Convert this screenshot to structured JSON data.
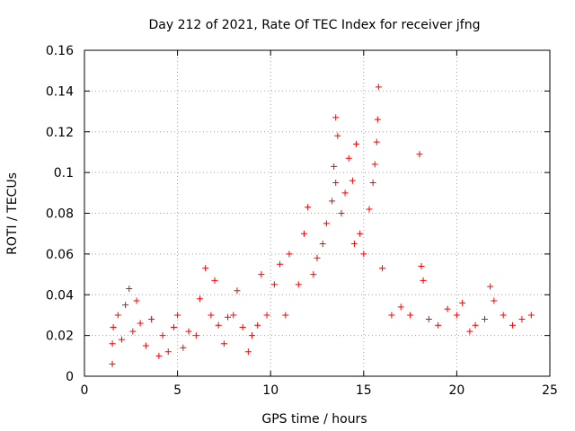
{
  "chart_data": {
    "type": "scatter",
    "title": "Day 212 of 2021, Rate Of TEC Index for receiver jfng",
    "xlabel": "GPS time / hours",
    "ylabel": "ROTI / TECUs",
    "xlim": [
      0,
      25
    ],
    "ylim": [
      0,
      0.16
    ],
    "xticks": [
      "0",
      "5",
      "10",
      "15",
      "20",
      "25"
    ],
    "yticks": [
      "0",
      "0.02",
      "0.04",
      "0.06",
      "0.08",
      "0.1",
      "0.12",
      "0.14",
      "0.16"
    ],
    "grid": true,
    "marker": "+",
    "color": "#ff0000",
    "series": [
      {
        "name": "ROTI",
        "points": [
          [
            1.5,
            0.006
          ],
          [
            1.5,
            0.016
          ],
          [
            1.55,
            0.024
          ],
          [
            1.8,
            0.03
          ],
          [
            2.0,
            0.018
          ],
          [
            2.2,
            0.035
          ],
          [
            2.4,
            0.043
          ],
          [
            2.6,
            0.022
          ],
          [
            2.8,
            0.037
          ],
          [
            3.0,
            0.026
          ],
          [
            3.3,
            0.015
          ],
          [
            3.6,
            0.028
          ],
          [
            4.0,
            0.01
          ],
          [
            4.2,
            0.02
          ],
          [
            4.5,
            0.012
          ],
          [
            4.8,
            0.024
          ],
          [
            5.0,
            0.03
          ],
          [
            5.3,
            0.014
          ],
          [
            5.6,
            0.022
          ],
          [
            6.0,
            0.02
          ],
          [
            6.2,
            0.038
          ],
          [
            6.5,
            0.053
          ],
          [
            6.8,
            0.03
          ],
          [
            7.0,
            0.047
          ],
          [
            7.2,
            0.025
          ],
          [
            7.5,
            0.016
          ],
          [
            7.7,
            0.029
          ],
          [
            8.0,
            0.03
          ],
          [
            8.2,
            0.042
          ],
          [
            8.5,
            0.024
          ],
          [
            8.8,
            0.012
          ],
          [
            9.0,
            0.02
          ],
          [
            9.3,
            0.025
          ],
          [
            9.5,
            0.05
          ],
          [
            9.8,
            0.03
          ],
          [
            10.2,
            0.045
          ],
          [
            10.5,
            0.055
          ],
          [
            10.8,
            0.03
          ],
          [
            11.0,
            0.06
          ],
          [
            11.5,
            0.045
          ],
          [
            11.8,
            0.07
          ],
          [
            12.0,
            0.083
          ],
          [
            12.3,
            0.05
          ],
          [
            12.5,
            0.058
          ],
          [
            12.8,
            0.065
          ],
          [
            13.0,
            0.075
          ],
          [
            13.3,
            0.086
          ],
          [
            13.5,
            0.095
          ],
          [
            13.4,
            0.103
          ],
          [
            13.6,
            0.118
          ],
          [
            13.5,
            0.127
          ],
          [
            13.8,
            0.08
          ],
          [
            14.0,
            0.09
          ],
          [
            14.2,
            0.107
          ],
          [
            14.4,
            0.096
          ],
          [
            14.6,
            0.114
          ],
          [
            14.5,
            0.065
          ],
          [
            14.8,
            0.07
          ],
          [
            15.0,
            0.06
          ],
          [
            15.3,
            0.082
          ],
          [
            15.5,
            0.095
          ],
          [
            15.6,
            0.104
          ],
          [
            15.7,
            0.115
          ],
          [
            15.75,
            0.126
          ],
          [
            15.8,
            0.142
          ],
          [
            16.0,
            0.053
          ],
          [
            16.5,
            0.03
          ],
          [
            17.0,
            0.034
          ],
          [
            17.5,
            0.03
          ],
          [
            18.0,
            0.109
          ],
          [
            18.1,
            0.054
          ],
          [
            18.2,
            0.047
          ],
          [
            18.5,
            0.028
          ],
          [
            19.0,
            0.025
          ],
          [
            19.5,
            0.033
          ],
          [
            20.0,
            0.03
          ],
          [
            20.3,
            0.036
          ],
          [
            20.7,
            0.022
          ],
          [
            21.0,
            0.025
          ],
          [
            21.5,
            0.028
          ],
          [
            21.8,
            0.044
          ],
          [
            22.0,
            0.037
          ],
          [
            22.5,
            0.03
          ],
          [
            23.0,
            0.025
          ],
          [
            23.5,
            0.028
          ],
          [
            24.0,
            0.03
          ]
        ]
      }
    ]
  }
}
